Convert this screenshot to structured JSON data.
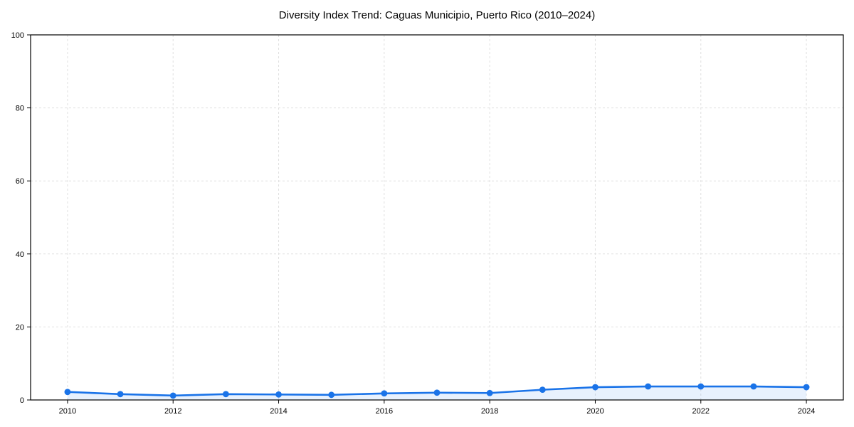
{
  "page": {
    "background": "#ffffff"
  },
  "chart_data": {
    "type": "line",
    "title": "Diversity Index Trend: Caguas Municipio, Puerto Rico (2010–2024)",
    "x": [
      2010,
      2011,
      2012,
      2013,
      2014,
      2015,
      2016,
      2017,
      2018,
      2019,
      2020,
      2021,
      2022,
      2023,
      2024
    ],
    "series": [
      {
        "name": "Diversity Index",
        "values": [
          2.2,
          1.6,
          1.2,
          1.6,
          1.5,
          1.4,
          1.8,
          2.0,
          1.9,
          2.8,
          3.5,
          3.7,
          3.7,
          3.7,
          3.5
        ]
      }
    ],
    "xlabel": "",
    "ylabel": "",
    "xlim": [
      2009.3,
      2024.7
    ],
    "ylim": [
      0,
      100
    ],
    "x_ticks": [
      2010,
      2012,
      2014,
      2016,
      2018,
      2020,
      2022,
      2024
    ],
    "y_ticks": [
      0,
      20,
      40,
      60,
      80,
      100
    ],
    "grid": true,
    "grid_style": "dashed",
    "legend": "none",
    "line_color": "#1a73e8",
    "marker": "circle",
    "fill_under_line": true,
    "fill_color": "#1a73e8",
    "fill_opacity": 0.1,
    "grid_color": "#e0e0e0",
    "axis_color": "#000000",
    "text_color": "#000000"
  }
}
